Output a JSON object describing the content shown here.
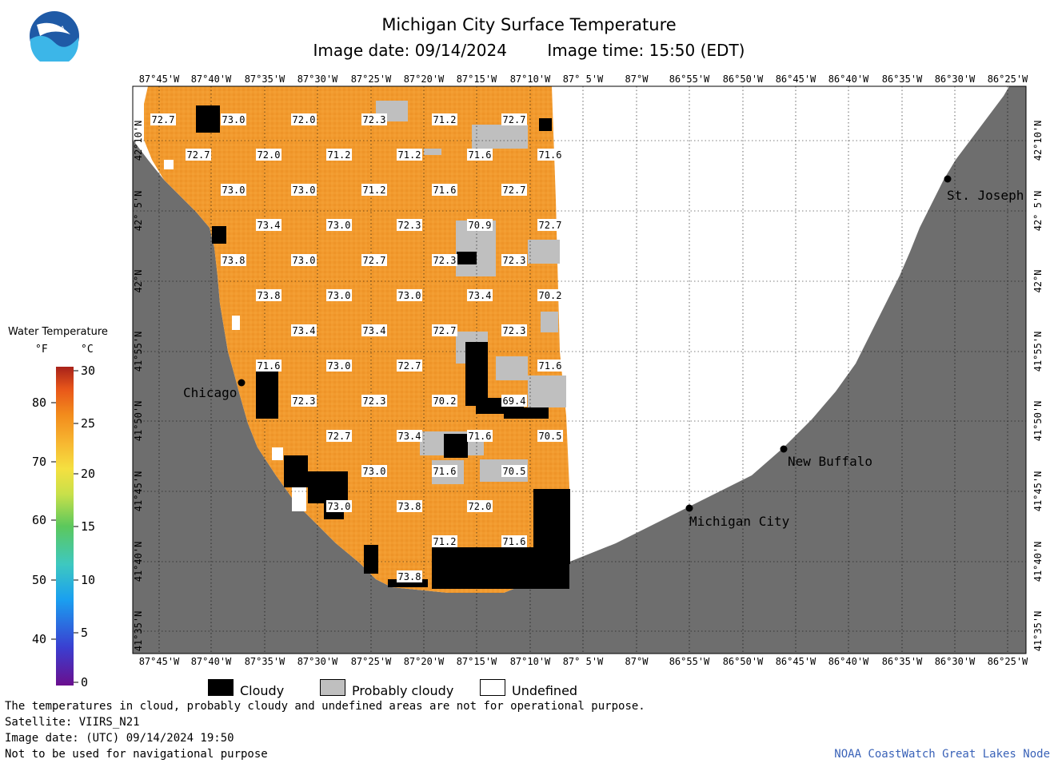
{
  "header": {
    "title": "Michigan City Surface Temperature",
    "image_date": "Image date: 09/14/2024",
    "image_time": "Image time: 15:50 (EDT)"
  },
  "logo": {
    "text": "NOAA",
    "icon": "noaa-logo-icon",
    "colors": [
      "#1f5aa6",
      "#3cb6e8",
      "#ffffff"
    ]
  },
  "axes": {
    "lon_labels": [
      "87°45'W",
      "87°40'W",
      "87°35'W",
      "87°30'W",
      "87°25'W",
      "87°20'W",
      "87°15'W",
      "87°10'W",
      "87° 5'W",
      "87°W",
      "86°55'W",
      "86°50'W",
      "86°45'W",
      "86°40'W",
      "86°35'W",
      "86°30'W",
      "86°25'W"
    ],
    "lat_labels": [
      "42°10'N",
      "42° 5'N",
      "42°N",
      "41°55'N",
      "41°50'N",
      "41°45'N",
      "41°40'N",
      "41°35'N"
    ]
  },
  "places": [
    {
      "name": "Chicago"
    },
    {
      "name": "St. Joseph"
    },
    {
      "name": "New Buffalo"
    },
    {
      "name": "Michigan City"
    }
  ],
  "temperatures": [
    "72.7",
    "73.0",
    "72.0",
    "72.3",
    "71.2",
    "72.7",
    "72.7",
    "72.0",
    "71.2",
    "71.2",
    "71.6",
    "71.6",
    "73.0",
    "73.0",
    "71.2",
    "71.6",
    "72.7",
    "73.4",
    "73.0",
    "72.3",
    "70.9",
    "72.7",
    "73.8",
    "73.0",
    "72.7",
    "72.3",
    "72.3",
    "73.8",
    "73.0",
    "73.0",
    "73.4",
    "70.2",
    "73.4",
    "73.4",
    "72.7",
    "72.3",
    "71.6",
    "73.0",
    "72.7",
    "71.6",
    "72.3",
    "72.3",
    "70.2",
    "69.4",
    "72.7",
    "73.4",
    "71.6",
    "70.5",
    "73.0",
    "71.6",
    "70.5",
    "73.0",
    "73.8",
    "72.0",
    "71.2",
    "71.6",
    "73.8"
  ],
  "legend": {
    "title": "Water Temperature",
    "unit_f": "°F",
    "unit_c": "°C",
    "f_ticks": [
      "80",
      "70",
      "60",
      "50",
      "40"
    ],
    "c_ticks": [
      "30",
      "25",
      "20",
      "15",
      "10",
      "5",
      "0"
    ],
    "colors": [
      "#6a0f8e",
      "#3a3fd1",
      "#1aa0f0",
      "#3ec8c0",
      "#5cc85c",
      "#c8e04a",
      "#f5e040",
      "#f7b731",
      "#f28b1c",
      "#e8561a",
      "#a8221a"
    ]
  },
  "key": {
    "cloudy": "Cloudy",
    "probably_cloudy": "Probably cloudy",
    "undefined": "Undefined",
    "colors": {
      "cloudy": "#000000",
      "probably_cloudy": "#bfbfbf",
      "undefined": "#ffffff",
      "land": "#6e6e6e",
      "water": "#f29a2e"
    }
  },
  "footer": {
    "line1": "The temperatures in cloud, probably cloudy and undefined areas are not for operational purpose.",
    "line2": "Satellite: VIIRS_N21",
    "line3": "Image date: (UTC) 09/14/2024  19:50",
    "line4": "Not to be used for navigational purpose",
    "credit": "NOAA CoastWatch Great Lakes Node"
  }
}
